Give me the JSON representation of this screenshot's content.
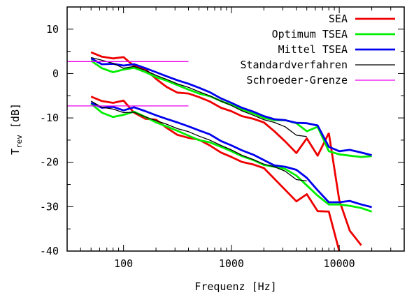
{
  "chart_data": {
    "type": "line",
    "xlabel": "Frequenz [Hz]",
    "ylabel_main": "T",
    "ylabel_sub": "rev",
    "ylabel_unit": " [dB]",
    "xscale": "log",
    "xlim": [
      30,
      40000
    ],
    "ylim": [
      -40,
      15
    ],
    "x_tick_labels": [
      "100",
      "1000",
      "10000"
    ],
    "x_tick_values": [
      100,
      1000,
      10000
    ],
    "y_tick_labels": [
      "-40",
      "-30",
      "-20",
      "-10",
      "0",
      "10"
    ],
    "y_tick_values": [
      -40,
      -30,
      -20,
      -10,
      0,
      10
    ],
    "grid": false,
    "legend_position": "top-right",
    "series": [
      {
        "name": "SEA",
        "color": "#ee0000",
        "groups": [
          {
            "x": [
              50,
              63,
              80,
              100,
              125,
              160,
              200,
              250,
              315,
              400,
              500,
              630,
              800,
              1000,
              1250,
              1600,
              2000,
              2500,
              3150,
              4000,
              5000,
              6300,
              8000
            ],
            "y": [
              4.8,
              3.8,
              3.4,
              3.7,
              1.7,
              0.9,
              -1.2,
              -3.0,
              -4.3,
              -4.5,
              -5.3,
              -6.3,
              -7.7,
              -8.5,
              -9.6,
              -10.2,
              -11.0,
              -13.0,
              -15.3,
              -17.9,
              -14.6,
              -18.5,
              -13.4
            ]
          },
          {
            "x": [
              8000,
              10000,
              12500,
              16000
            ],
            "y": [
              -13.4,
              -28.5,
              -35.4,
              -38.7
            ]
          },
          {
            "x": [
              50,
              63,
              80,
              100,
              125,
              160,
              200,
              250,
              315,
              400,
              500,
              630,
              800,
              1000,
              1250,
              1600,
              2000,
              2500,
              3150,
              4000,
              5000,
              6300,
              8000,
              10000
            ],
            "y": [
              -5.2,
              -6.2,
              -6.6,
              -6.1,
              -8.8,
              -10.2,
              -10.4,
              -12.2,
              -13.8,
              -14.5,
              -14.9,
              -16.2,
              -17.8,
              -18.8,
              -19.9,
              -20.5,
              -21.3,
              -23.7,
              -26.2,
              -28.8,
              -27.2,
              -31.0,
              -31.1,
              -40.0
            ]
          }
        ]
      },
      {
        "name": "Optimum TSEA",
        "color": "#00ee00",
        "groups": [
          {
            "x": [
              50,
              63,
              80,
              100,
              125,
              160,
              200,
              250,
              315,
              400,
              500,
              630,
              800,
              1000,
              1250,
              1600,
              2000,
              2500,
              3150,
              4000,
              5000,
              6300,
              8000,
              10000,
              12500,
              16000,
              20000
            ],
            "y": [
              2.9,
              1.2,
              0.3,
              0.9,
              1.3,
              0.3,
              -0.8,
              -1.6,
              -2.6,
              -3.6,
              -4.5,
              -5.1,
              -6.2,
              -7.1,
              -8.1,
              -9.0,
              -10.0,
              -10.5,
              -10.5,
              -11.2,
              -13.0,
              -12.0,
              -17.5,
              -18.2,
              -18.5,
              -18.8,
              -18.6
            ]
          },
          {
            "x": [
              50,
              63,
              80,
              100,
              125,
              160,
              200,
              250,
              315,
              400,
              500,
              630,
              800,
              1000,
              1250,
              1600,
              2000,
              2500,
              3150,
              4000,
              5000,
              6300,
              8000,
              10000,
              12500,
              16000,
              20000
            ],
            "y": [
              -6.8,
              -8.8,
              -9.8,
              -9.3,
              -8.6,
              -9.8,
              -11.0,
              -11.9,
              -12.9,
              -14.0,
              -15.0,
              -15.5,
              -16.5,
              -17.5,
              -18.6,
              -19.5,
              -20.6,
              -21.0,
              -21.5,
              -23.0,
              -25.2,
              -27.5,
              -29.5,
              -29.5,
              -29.8,
              -30.3,
              -31.1
            ]
          }
        ]
      },
      {
        "name": "Mittel TSEA",
        "color": "#0000ee",
        "groups": [
          {
            "x": [
              50,
              63,
              80,
              100,
              125,
              160,
              200,
              250,
              315,
              400,
              500,
              630,
              800,
              1000,
              1250,
              1600,
              2000,
              2500,
              3150,
              4000,
              5000,
              6300,
              8000,
              10000,
              12500,
              16000,
              20000
            ],
            "y": [
              3.4,
              2.1,
              2.2,
              1.8,
              2.1,
              1.2,
              0.3,
              -0.6,
              -1.5,
              -2.3,
              -3.2,
              -4.2,
              -5.6,
              -6.6,
              -7.7,
              -8.6,
              -9.6,
              -10.3,
              -10.5,
              -11.1,
              -11.2,
              -11.7,
              -16.5,
              -17.5,
              -17.2,
              -17.8,
              -18.4
            ]
          },
          {
            "x": [
              50,
              63,
              80,
              100,
              125,
              160,
              200,
              250,
              315,
              400,
              500,
              630,
              800,
              1000,
              1250,
              1600,
              2000,
              2500,
              3150,
              4000,
              5000,
              6300,
              8000,
              10000,
              12500,
              16000,
              20000
            ],
            "y": [
              -6.6,
              -7.7,
              -7.5,
              -8.3,
              -7.6,
              -8.5,
              -9.4,
              -10.2,
              -11.0,
              -11.9,
              -12.8,
              -13.7,
              -15.2,
              -16.2,
              -17.3,
              -18.3,
              -19.5,
              -20.7,
              -21.0,
              -21.7,
              -23.5,
              -26.3,
              -29.0,
              -29.0,
              -28.7,
              -29.5,
              -30.1
            ]
          }
        ]
      },
      {
        "name": "Standardverfahren",
        "color": "#000000",
        "groups": [
          {
            "x": [
              50,
              63,
              80,
              100,
              125,
              160,
              200,
              250,
              315,
              400,
              500,
              630,
              800,
              1000,
              1250,
              1600,
              2000,
              2500,
              3150,
              4000,
              5000
            ],
            "y": [
              3.6,
              3.0,
              2.3,
              1.2,
              1.6,
              0.7,
              -0.4,
              -1.3,
              -2.3,
              -3.1,
              -4.1,
              -5.0,
              -6.2,
              -7.2,
              -8.4,
              -9.4,
              -10.4,
              -11.0,
              -12.0,
              -13.9,
              -14.2
            ]
          },
          {
            "x": [
              50,
              63,
              80,
              100,
              125,
              160,
              200,
              250,
              315,
              400,
              500,
              630,
              800,
              1000,
              1250,
              1600,
              2000,
              2500,
              3150,
              4000,
              5000
            ],
            "y": [
              -6.2,
              -7.6,
              -8.0,
              -8.8,
              -8.7,
              -9.8,
              -10.6,
              -11.4,
              -12.4,
              -13.1,
              -14.1,
              -15.0,
              -16.2,
              -17.2,
              -18.4,
              -19.4,
              -20.4,
              -21.0,
              -22.0,
              -23.9,
              -24.2
            ]
          }
        ]
      },
      {
        "name": "Schroeder-Grenze",
        "color": "#ee00ee",
        "groups": [
          {
            "x": [
              30,
              400
            ],
            "y": [
              2.7,
              2.7
            ]
          },
          {
            "x": [
              30,
              400
            ],
            "y": [
              -7.3,
              -7.3
            ]
          }
        ]
      }
    ]
  }
}
